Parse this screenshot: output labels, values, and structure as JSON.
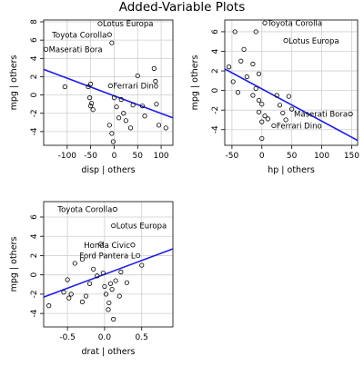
{
  "title": "Added-Variable Plots",
  "colors": {
    "points": "#000000",
    "fit_line": "#1f1fe0",
    "grid": "#cfcfcf"
  },
  "chart_data": [
    {
      "type": "scatter",
      "title": "",
      "xlabel": "disp | others",
      "ylabel": "mpg | others",
      "xlim": [
        -150,
        125
      ],
      "ylim": [
        -5.5,
        8.2
      ],
      "xticks": [
        -100,
        -50,
        0,
        50,
        100
      ],
      "xtick_labels": [
        "-100",
        "-50",
        "0",
        "50",
        "100"
      ],
      "yticks": [
        -4,
        -2,
        0,
        2,
        4,
        6,
        8
      ],
      "ytick_labels": [
        "-4",
        "-2",
        "0",
        "2",
        "4",
        "6",
        "8"
      ],
      "grid": true,
      "fit_line": {
        "x": [
          -150,
          125
        ],
        "y": [
          2.8,
          -2.5
        ]
      },
      "points": [
        {
          "x": -30,
          "y": 7.8,
          "label": "Lotus Europa"
        },
        {
          "x": -10,
          "y": 6.6,
          "label": "Toyota Corolla"
        },
        {
          "x": -145,
          "y": 5.0,
          "label": "Maserati Bora"
        },
        {
          "x": -8,
          "y": 1.0,
          "label": "Ferrari Dino"
        },
        {
          "x": -5,
          "y": 5.7,
          "label": ""
        },
        {
          "x": -105,
          "y": 0.9,
          "label": ""
        },
        {
          "x": -55,
          "y": 0.9,
          "label": ""
        },
        {
          "x": -50,
          "y": 1.2,
          "label": ""
        },
        {
          "x": -52,
          "y": -0.3,
          "label": ""
        },
        {
          "x": -48,
          "y": -0.9,
          "label": ""
        },
        {
          "x": -45,
          "y": -1.6,
          "label": ""
        },
        {
          "x": -50,
          "y": -1.2,
          "label": ""
        },
        {
          "x": -10,
          "y": -3.3,
          "label": ""
        },
        {
          "x": -5,
          "y": -4.2,
          "label": ""
        },
        {
          "x": -2,
          "y": -5.1,
          "label": ""
        },
        {
          "x": 0,
          "y": -0.3,
          "label": ""
        },
        {
          "x": 5,
          "y": -1.3,
          "label": ""
        },
        {
          "x": 10,
          "y": -2.5,
          "label": ""
        },
        {
          "x": 15,
          "y": -0.5,
          "label": ""
        },
        {
          "x": 20,
          "y": -2.0,
          "label": ""
        },
        {
          "x": 25,
          "y": -2.8,
          "label": ""
        },
        {
          "x": 40,
          "y": -1.1,
          "label": ""
        },
        {
          "x": 50,
          "y": 2.1,
          "label": ""
        },
        {
          "x": 60,
          "y": -1.2,
          "label": ""
        },
        {
          "x": 65,
          "y": -2.3,
          "label": ""
        },
        {
          "x": 85,
          "y": 2.9,
          "label": ""
        },
        {
          "x": 88,
          "y": 1.5,
          "label": ""
        },
        {
          "x": 90,
          "y": -1.0,
          "label": ""
        },
        {
          "x": 95,
          "y": -3.3,
          "label": ""
        },
        {
          "x": 110,
          "y": -3.6,
          "label": ""
        },
        {
          "x": 35,
          "y": -3.6,
          "label": ""
        }
      ]
    },
    {
      "type": "scatter",
      "title": "",
      "xlabel": "hp | others",
      "ylabel": "mpg | others",
      "xlim": [
        -62,
        160
      ],
      "ylim": [
        -5.6,
        7.2
      ],
      "xticks": [
        -50,
        0,
        50,
        100,
        150
      ],
      "xtick_labels": [
        "-50",
        "0",
        "50",
        "100",
        "150"
      ],
      "yticks": [
        -4,
        -2,
        0,
        2,
        4,
        6
      ],
      "ytick_labels": [
        "-4",
        "-2",
        "0",
        "2",
        "4",
        "6"
      ],
      "grid": true,
      "fit_line": {
        "x": [
          -62,
          160
        ],
        "y": [
          2.2,
          -5.1
        ]
      },
      "points": [
        {
          "x": 5,
          "y": 6.9,
          "label": "Toyota Corolla"
        },
        {
          "x": 40,
          "y": 5.1,
          "label": "Lotus Europa"
        },
        {
          "x": 148,
          "y": -2.4,
          "label": "Maserati Bora"
        },
        {
          "x": 20,
          "y": -3.6,
          "label": "Ferrari Dino"
        },
        {
          "x": -45,
          "y": 6.0,
          "label": ""
        },
        {
          "x": -10,
          "y": 6.0,
          "label": ""
        },
        {
          "x": -30,
          "y": 4.2,
          "label": ""
        },
        {
          "x": -35,
          "y": 3.0,
          "label": ""
        },
        {
          "x": -55,
          "y": 2.4,
          "label": ""
        },
        {
          "x": -15,
          "y": 2.7,
          "label": ""
        },
        {
          "x": -25,
          "y": 1.4,
          "label": ""
        },
        {
          "x": -5,
          "y": 1.7,
          "label": ""
        },
        {
          "x": -48,
          "y": 0.9,
          "label": ""
        },
        {
          "x": -40,
          "y": -0.2,
          "label": ""
        },
        {
          "x": -10,
          "y": 0.2,
          "label": ""
        },
        {
          "x": -15,
          "y": -0.5,
          "label": ""
        },
        {
          "x": -5,
          "y": -1.0,
          "label": ""
        },
        {
          "x": 0,
          "y": -1.4,
          "label": ""
        },
        {
          "x": -5,
          "y": -2.2,
          "label": ""
        },
        {
          "x": 5,
          "y": -2.6,
          "label": ""
        },
        {
          "x": 10,
          "y": -2.9,
          "label": ""
        },
        {
          "x": 0,
          "y": -3.2,
          "label": ""
        },
        {
          "x": 25,
          "y": -0.5,
          "label": ""
        },
        {
          "x": 30,
          "y": -1.5,
          "label": ""
        },
        {
          "x": 35,
          "y": -2.3,
          "label": ""
        },
        {
          "x": 40,
          "y": -3.0,
          "label": ""
        },
        {
          "x": 45,
          "y": -0.6,
          "label": ""
        },
        {
          "x": 50,
          "y": -1.9,
          "label": ""
        },
        {
          "x": 0,
          "y": -4.9,
          "label": ""
        }
      ]
    },
    {
      "type": "scatter",
      "title": "",
      "xlabel": "drat | others",
      "ylabel": "mpg | others",
      "xlim": [
        -0.82,
        0.92
      ],
      "ylim": [
        -5.4,
        7.6
      ],
      "xticks": [
        -0.5,
        0,
        0.5
      ],
      "xtick_labels": [
        "-0.5",
        "0.0",
        "0.5"
      ],
      "yticks": [
        -4,
        -2,
        0,
        2,
        4,
        6
      ],
      "ytick_labels": [
        "-4",
        "-2",
        "0",
        "2",
        "4",
        "6"
      ],
      "grid": true,
      "fit_line": {
        "x": [
          -0.82,
          0.92
        ],
        "y": [
          -2.3,
          2.7
        ]
      },
      "points": [
        {
          "x": 0.14,
          "y": 6.8,
          "label": "Toyota Corolla"
        },
        {
          "x": 0.12,
          "y": 5.1,
          "label": "Lotus Europa"
        },
        {
          "x": 0.38,
          "y": 3.1,
          "label": "Honda Civic"
        },
        {
          "x": 0.45,
          "y": 2.0,
          "label": "Ford Pantera L"
        },
        {
          "x": -0.75,
          "y": -3.2,
          "label": ""
        },
        {
          "x": -0.55,
          "y": -1.8,
          "label": ""
        },
        {
          "x": -0.5,
          "y": -0.5,
          "label": ""
        },
        {
          "x": -0.48,
          "y": -2.4,
          "label": ""
        },
        {
          "x": -0.45,
          "y": -2.0,
          "label": ""
        },
        {
          "x": -0.4,
          "y": 1.2,
          "label": ""
        },
        {
          "x": -0.3,
          "y": 1.6,
          "label": ""
        },
        {
          "x": -0.3,
          "y": -2.8,
          "label": ""
        },
        {
          "x": -0.25,
          "y": -2.2,
          "label": ""
        },
        {
          "x": -0.2,
          "y": -0.9,
          "label": ""
        },
        {
          "x": -0.15,
          "y": 0.6,
          "label": ""
        },
        {
          "x": -0.1,
          "y": -0.1,
          "label": ""
        },
        {
          "x": -0.05,
          "y": 3.2,
          "label": ""
        },
        {
          "x": -0.02,
          "y": 0.2,
          "label": ""
        },
        {
          "x": 0.0,
          "y": -1.2,
          "label": ""
        },
        {
          "x": 0.02,
          "y": -2.0,
          "label": ""
        },
        {
          "x": 0.05,
          "y": -3.6,
          "label": ""
        },
        {
          "x": 0.06,
          "y": -2.9,
          "label": ""
        },
        {
          "x": 0.08,
          "y": -0.9,
          "label": ""
        },
        {
          "x": 0.1,
          "y": -1.5,
          "label": ""
        },
        {
          "x": 0.12,
          "y": -4.6,
          "label": ""
        },
        {
          "x": 0.15,
          "y": -0.6,
          "label": ""
        },
        {
          "x": 0.2,
          "y": -2.2,
          "label": ""
        },
        {
          "x": 0.22,
          "y": 0.3,
          "label": ""
        },
        {
          "x": 0.3,
          "y": -0.8,
          "label": ""
        },
        {
          "x": 0.5,
          "y": 1.0,
          "label": ""
        }
      ]
    }
  ]
}
